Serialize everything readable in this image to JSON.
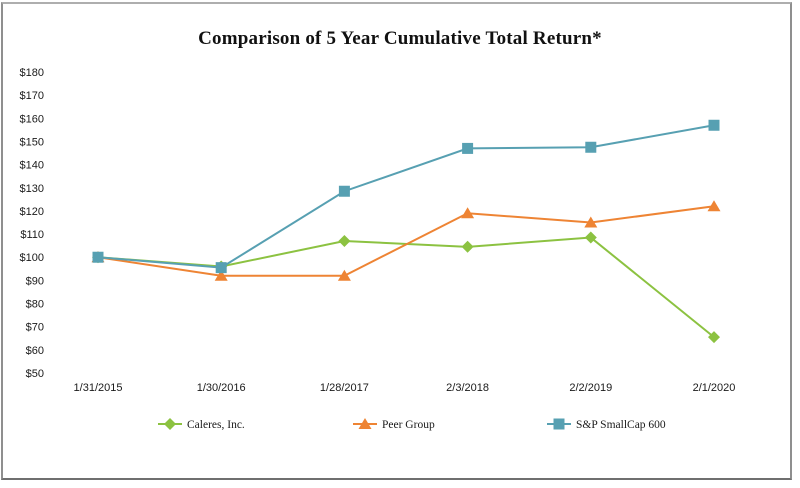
{
  "chart_data": {
    "type": "line",
    "title": "Comparison of 5 Year Cumulative Total Return*",
    "categories": [
      "1/31/2015",
      "1/30/2016",
      "1/28/2017",
      "2/3/2018",
      "2/2/2019",
      "2/1/2020"
    ],
    "series": [
      {
        "name": "Caleres, Inc.",
        "marker": "diamond",
        "color": "#8cc241",
        "values": [
          100,
          96,
          107,
          104.5,
          108.5,
          65.5
        ]
      },
      {
        "name": "Peer Group",
        "marker": "triangle",
        "color": "#ee8434",
        "values": [
          100,
          92,
          92,
          119,
          115,
          122
        ]
      },
      {
        "name": "S&P SmallCap 600",
        "marker": "square",
        "color": "#57a0b2",
        "values": [
          100,
          95.5,
          128.5,
          147,
          147.5,
          157
        ]
      }
    ],
    "y_axis": {
      "min": 50,
      "max": 180,
      "step": 10,
      "prefix": "$"
    },
    "x_axis": {
      "labels_visible": true
    },
    "legend_position": "bottom",
    "grid": false
  }
}
